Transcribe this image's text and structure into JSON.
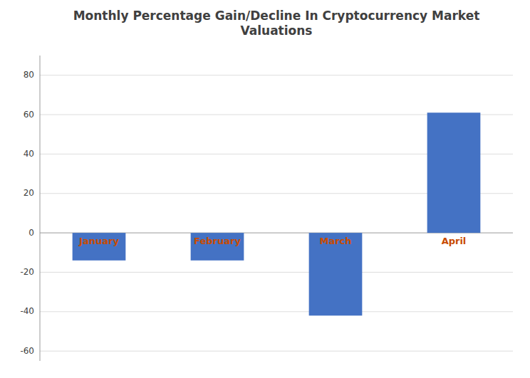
{
  "chart_data": {
    "type": "bar",
    "title": "Monthly Percentage Gain/Decline In Cryptocurrency Market\nValuations",
    "categories": [
      "January",
      "February",
      "March",
      "April"
    ],
    "values": [
      -14,
      -14,
      -42,
      61
    ],
    "color": "#4472C4",
    "ylim": [
      -65,
      90
    ],
    "yticks": [
      -60,
      -40,
      -20,
      0,
      20,
      40,
      60,
      80
    ],
    "grid": true
  }
}
